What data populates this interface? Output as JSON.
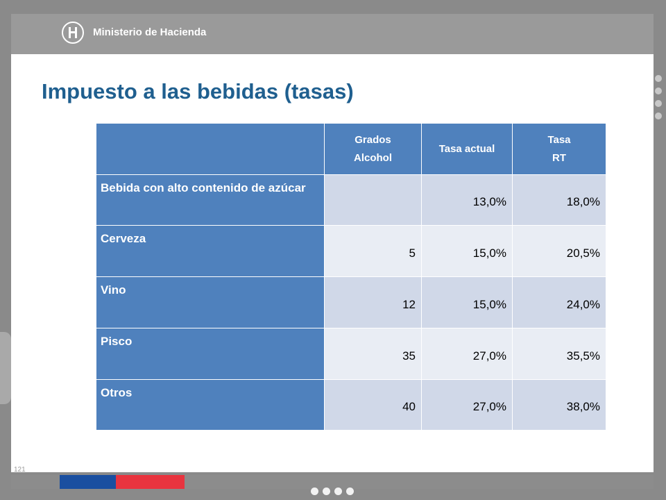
{
  "header": {
    "org_name": "Ministerio de Hacienda",
    "logo_icon": "ministry-crest-icon"
  },
  "title": "Impuesto a las bebidas (tasas)",
  "table": {
    "columns": [
      {
        "lines": [
          "",
          ""
        ]
      },
      {
        "lines": [
          "Grados",
          "Alcohol"
        ]
      },
      {
        "lines": [
          "Tasa actual",
          ""
        ]
      },
      {
        "lines": [
          "Tasa",
          "RT"
        ]
      }
    ],
    "rows": [
      {
        "label": "Bebida con alto contenido de azúcar",
        "grados": "",
        "tasa_actual": "13,0%",
        "tasa_rt": "18,0%"
      },
      {
        "label": "Cerveza",
        "grados": "5",
        "tasa_actual": "15,0%",
        "tasa_rt": "20,5%"
      },
      {
        "label": "Vino",
        "grados": "12",
        "tasa_actual": "15,0%",
        "tasa_rt": "24,0%"
      },
      {
        "label": "Pisco",
        "grados": "35",
        "tasa_actual": "27,0%",
        "tasa_rt": "35,5%"
      },
      {
        "label": "Otros",
        "grados": "40",
        "tasa_actual": "27,0%",
        "tasa_rt": "38,0%"
      }
    ]
  },
  "page_number": "121",
  "colors": {
    "header_blue": "#4f81bd",
    "row_odd": "#d0d8e8",
    "row_even": "#e9edf4",
    "title": "#1f5f8f",
    "flag_blue": "#1a4fa0",
    "flag_red": "#e8343f"
  }
}
